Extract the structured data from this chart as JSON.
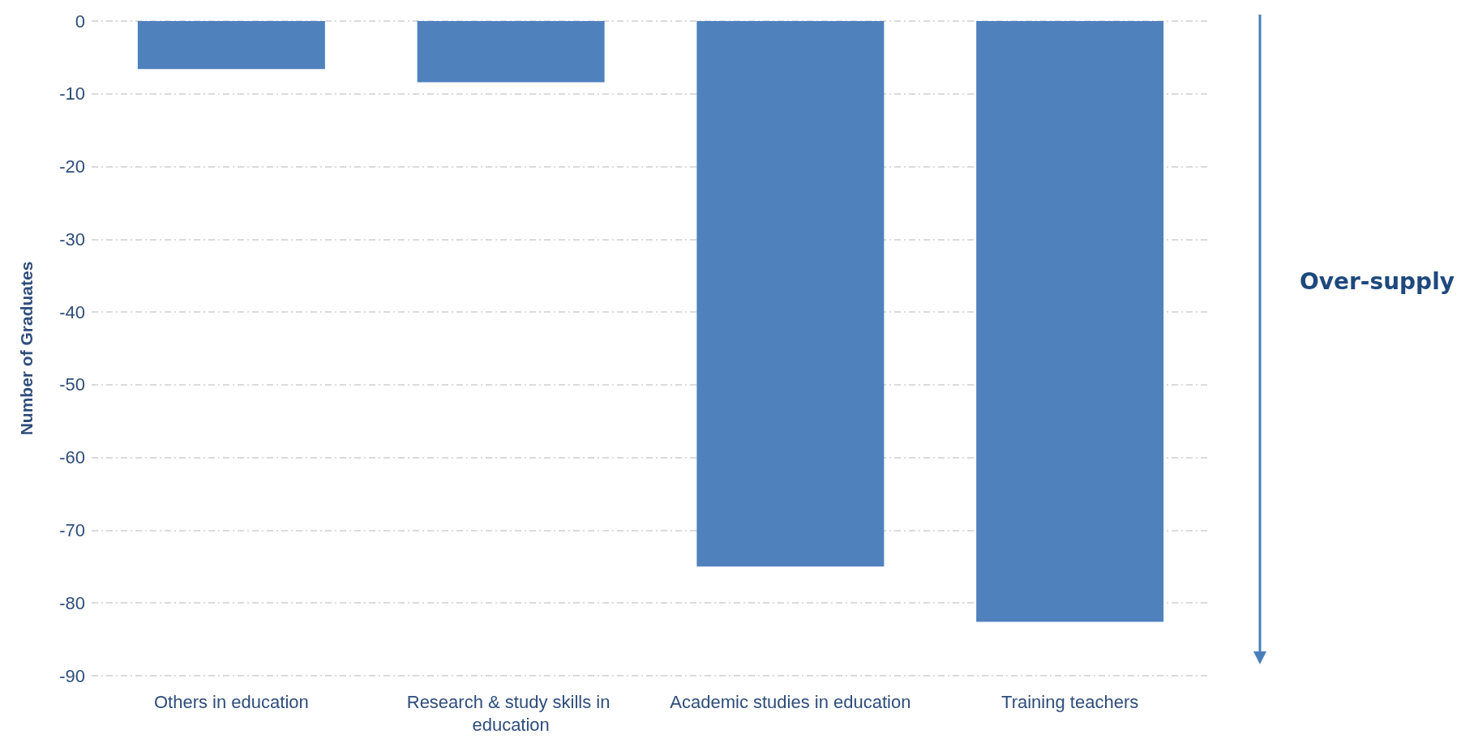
{
  "chart_data": {
    "type": "bar",
    "ylabel": "Number of Graduates",
    "categories": [
      "Others in education",
      "Research & study skills in education",
      "Academic studies in education",
      "Training teachers"
    ],
    "values": [
      -6.6,
      -8.4,
      -75.0,
      -82.6
    ],
    "color": "#4f81bd",
    "ylim": [
      -90,
      0
    ],
    "yticks": [
      -90,
      -80,
      -70,
      -60,
      -50,
      -40,
      -30,
      -20,
      -10,
      0
    ],
    "grid": "y",
    "annotations": [
      "Over-supply"
    ]
  }
}
